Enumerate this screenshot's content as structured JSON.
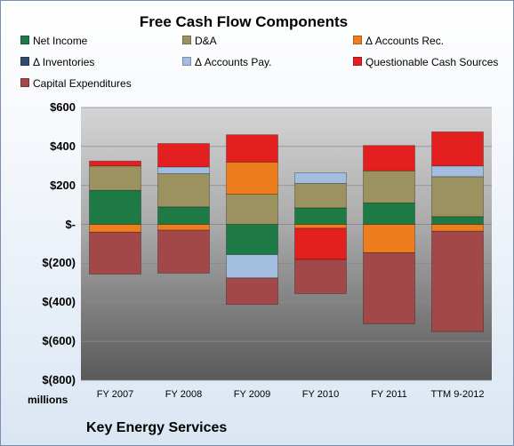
{
  "chart_data": {
    "type": "bar",
    "stacked": true,
    "title": "Free Cash Flow Components",
    "categories": [
      "FY 2007",
      "FY 2008",
      "FY 2009",
      "FY 2010",
      "FY 2011",
      "TTM 9-2012"
    ],
    "ylim": [
      -800,
      600
    ],
    "yticks": [
      600,
      400,
      200,
      0,
      -200,
      -400,
      -600,
      -800
    ],
    "ytick_labels": [
      "$600",
      "$400",
      "$200",
      "$-",
      "$(200)",
      "$(400)",
      "$(600)",
      "$(800)"
    ],
    "units_label": "millions",
    "legend_position": "top",
    "series": [
      {
        "name": "Net Income",
        "color": "#1d7a45",
        "values": [
          175,
          90,
          -155,
          85,
          110,
          40
        ]
      },
      {
        "name": "D&A",
        "color": "#9b925f",
        "values": [
          125,
          170,
          155,
          125,
          165,
          205
        ]
      },
      {
        "name": "Δ Accounts Rec.",
        "color": "#ee7d1e",
        "values": [
          -40,
          -30,
          165,
          -20,
          -145,
          -35
        ]
      },
      {
        "name": "Δ Inventories",
        "color": "#2f4a6b",
        "values": [
          0,
          0,
          0,
          0,
          0,
          0
        ]
      },
      {
        "name": "Δ Accounts Pay.",
        "color": "#a3bddf",
        "values": [
          0,
          35,
          -120,
          55,
          0,
          55
        ]
      },
      {
        "name": "Questionable Cash Sources",
        "color": "#e41f1f",
        "values": [
          25,
          120,
          140,
          -160,
          130,
          175
        ]
      },
      {
        "name": "Capital Expenditures",
        "color": "#a24848",
        "values": [
          -215,
          -220,
          -135,
          -175,
          -365,
          -515
        ]
      }
    ]
  },
  "footer": {
    "company": "Key Energy Services"
  }
}
